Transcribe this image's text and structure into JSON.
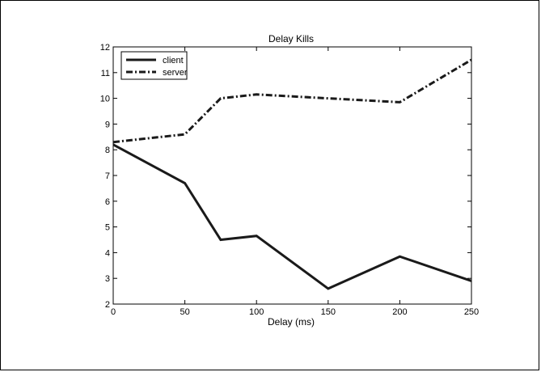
{
  "chart_data": {
    "type": "line",
    "title": "Delay Kills",
    "xlabel": "Delay (ms)",
    "ylabel": "",
    "xlim": [
      0,
      250
    ],
    "ylim": [
      2,
      12
    ],
    "xticks": [
      0,
      50,
      100,
      150,
      200,
      250
    ],
    "yticks": [
      2,
      3,
      4,
      5,
      6,
      7,
      8,
      9,
      10,
      11,
      12
    ],
    "grid": false,
    "legend_position": "top-left",
    "series": [
      {
        "name": "client",
        "line_style": "solid",
        "color": "#1a1a1a",
        "x": [
          0,
          50,
          75,
          100,
          150,
          200,
          250
        ],
        "y": [
          8.2,
          6.7,
          4.5,
          4.65,
          2.6,
          3.85,
          2.9
        ]
      },
      {
        "name": "server",
        "line_style": "dash-dot",
        "color": "#1a1a1a",
        "x": [
          0,
          50,
          75,
          100,
          150,
          200,
          250
        ],
        "y": [
          8.3,
          8.6,
          10.0,
          10.15,
          10.0,
          9.85,
          11.5
        ]
      }
    ]
  }
}
